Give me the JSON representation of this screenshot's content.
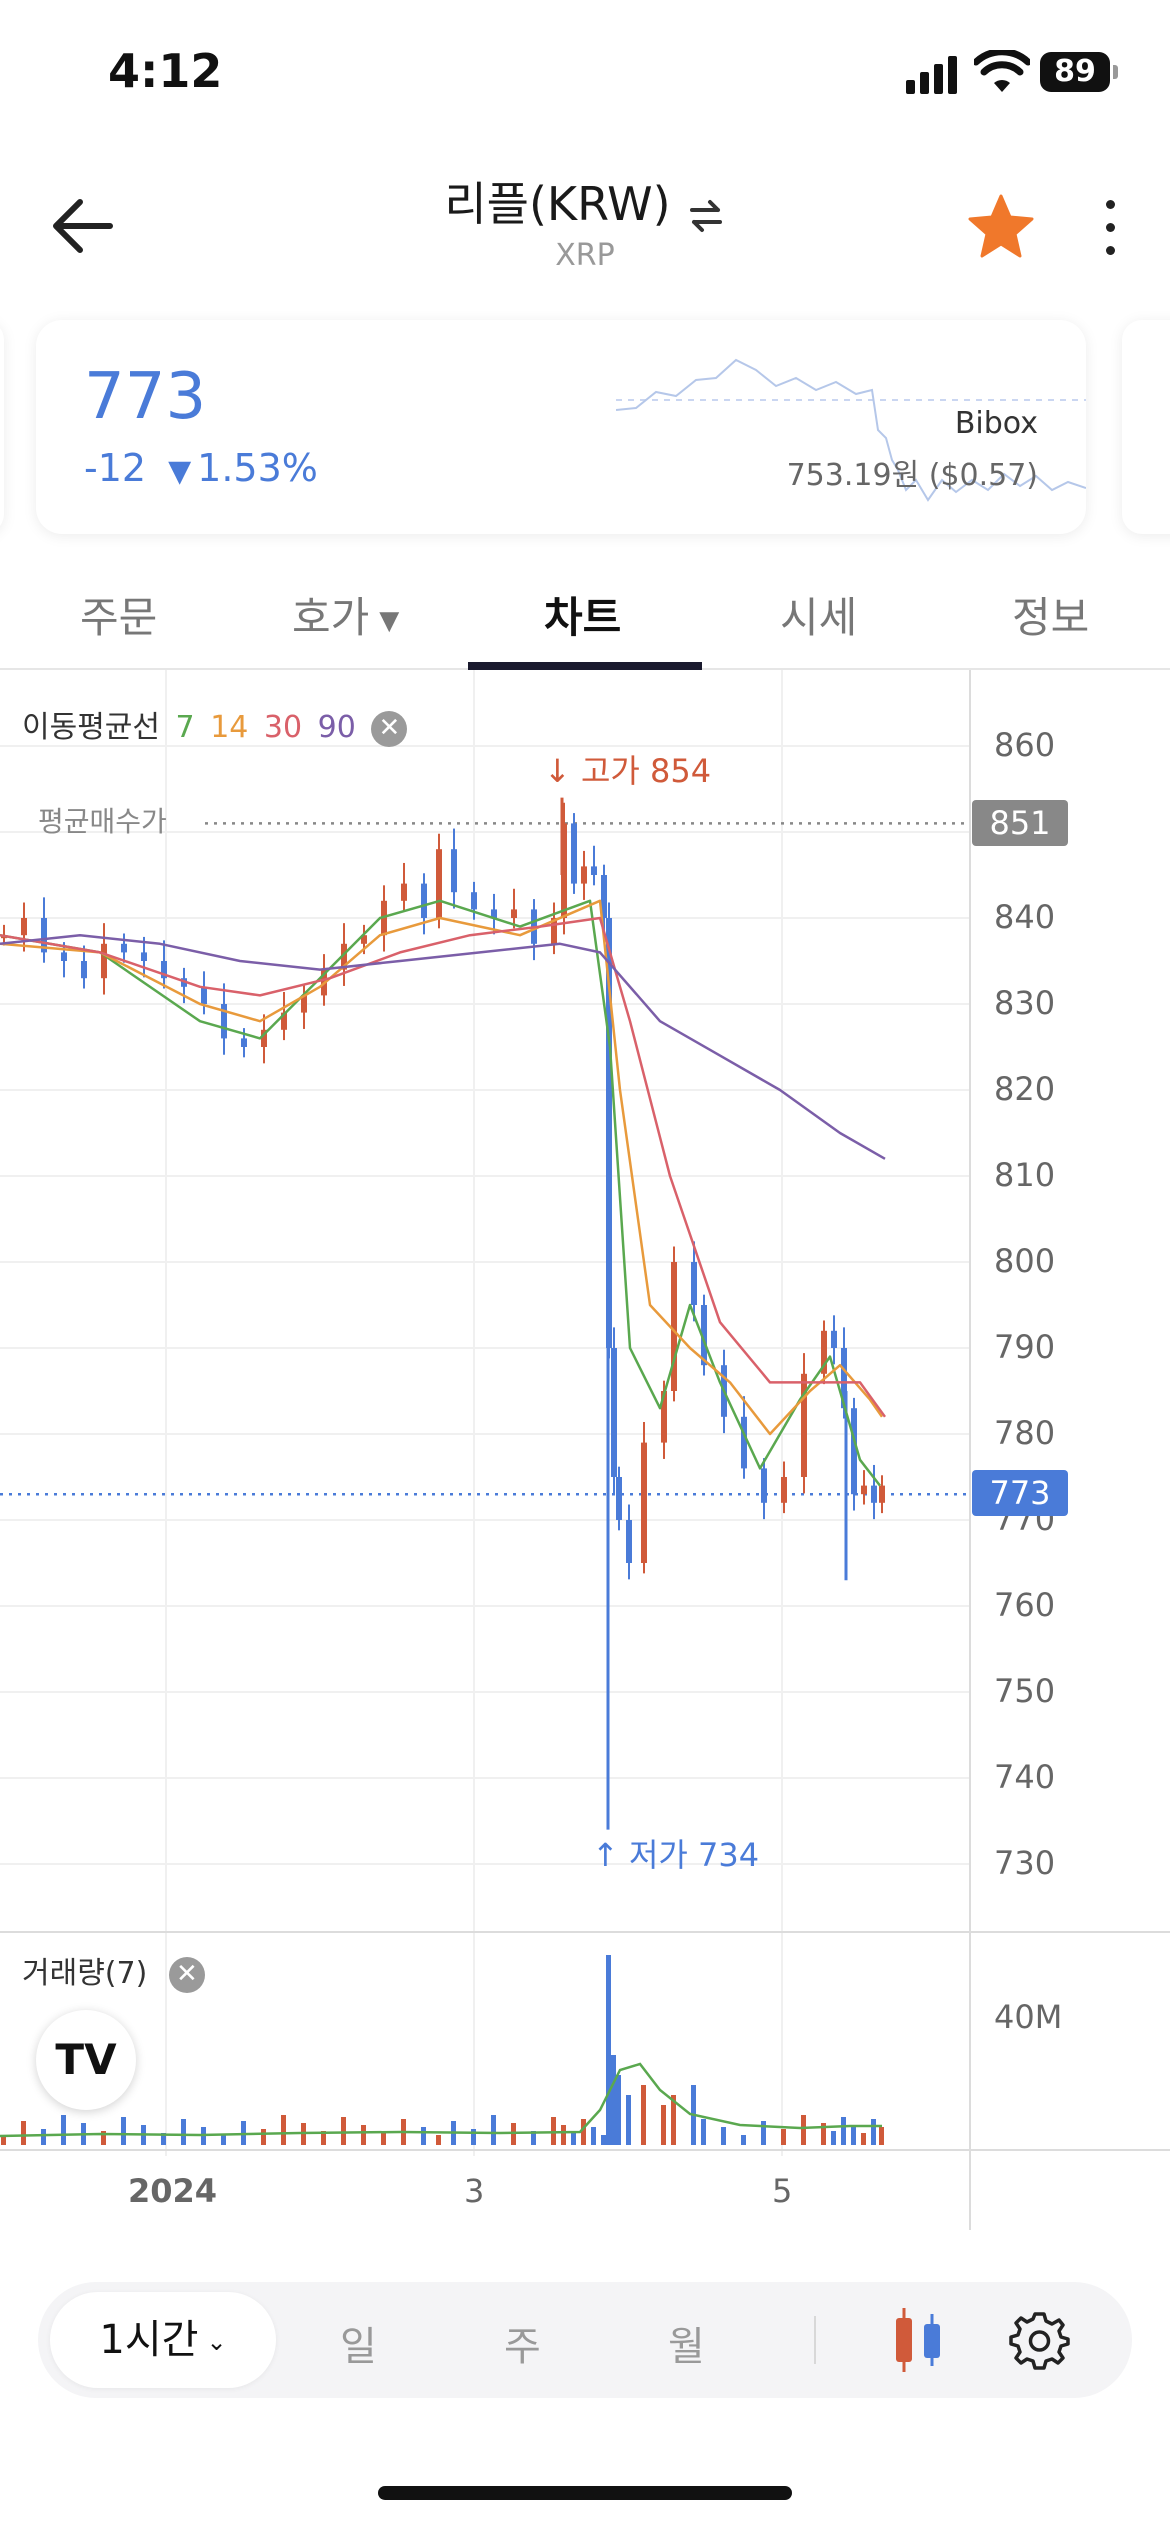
{
  "status_bar": {
    "time": "4:12",
    "battery": "89"
  },
  "header": {
    "title": "리플(KRW)",
    "subtitle": "XRP"
  },
  "price_card": {
    "price": "773",
    "change": "-12",
    "change_percent": "1.53%",
    "exchange_name": "Bibox",
    "exchange_price": "753.19원 ($0.57)"
  },
  "tabs": [
    {
      "label": "주문"
    },
    {
      "label": "호가"
    },
    {
      "label": "차트"
    },
    {
      "label": "시세"
    },
    {
      "label": "정보"
    }
  ],
  "chart": {
    "ma_title": "이동평균선",
    "ma_periods": [
      "7",
      "14",
      "30",
      "90"
    ],
    "avg_buy_label": "평균매수가",
    "avg_buy_price": "851",
    "high_label": "고가 854",
    "low_label": "저가 734",
    "current_price_tag": "773",
    "volume_title": "거래량(7)",
    "volume_tick": "40M",
    "tv_logo": "TV",
    "x_labels": [
      "2024",
      "3",
      "5"
    ]
  },
  "chart_data": {
    "type": "candlestick",
    "y_axis_ticks": [
      860,
      850,
      840,
      830,
      820,
      810,
      800,
      790,
      780,
      770,
      760,
      750,
      740,
      730
    ],
    "high": 854,
    "low": 734,
    "current": 773,
    "average_buy": 851,
    "moving_averages": [
      {
        "period": 7,
        "color": "#5aa84f"
      },
      {
        "period": 14,
        "color": "#e89a3c"
      },
      {
        "period": 30,
        "color": "#d9616a"
      },
      {
        "period": 90,
        "color": "#7b5ea8"
      }
    ],
    "up_color": "#d05a3a",
    "down_color": "#4a7bd8"
  },
  "bottom_bar": {
    "interval": "1시간",
    "periods": [
      "일",
      "주",
      "월"
    ]
  }
}
